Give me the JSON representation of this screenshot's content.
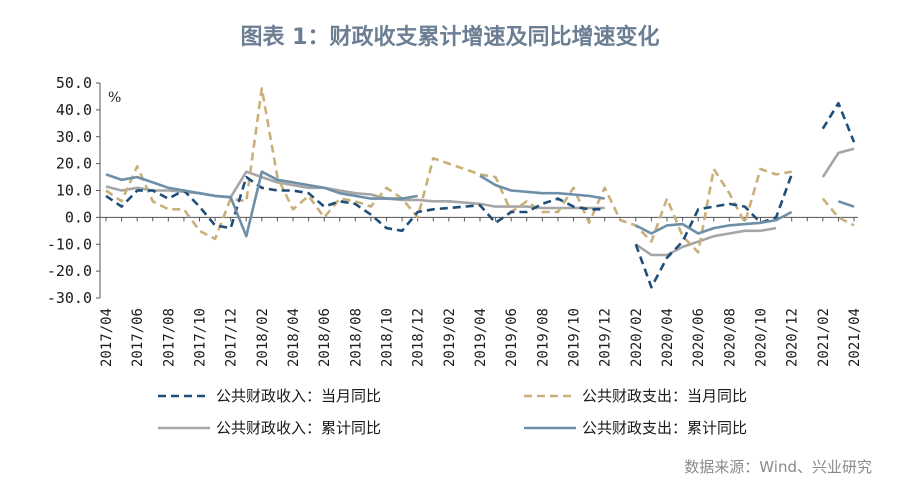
{
  "chart_data": {
    "type": "line",
    "title": "图表 1：财政收支累计增速及同比增速变化",
    "ylabel": "%",
    "ylim": [
      -30,
      50
    ],
    "yticks": [
      50,
      40,
      30,
      20,
      10,
      0,
      -10,
      -20,
      -30
    ],
    "ytick_labels": [
      "50.0",
      "40.0",
      "30.0",
      "20.0",
      "10.0",
      "0.0",
      "-10.0",
      "-20.0",
      "-30.0"
    ],
    "x": [
      "2017/04",
      "2017/05",
      "2017/06",
      "2017/07",
      "2017/08",
      "2017/09",
      "2017/10",
      "2017/11",
      "2017/12",
      "2018/01",
      "2018/02",
      "2018/03",
      "2018/04",
      "2018/05",
      "2018/06",
      "2018/07",
      "2018/08",
      "2018/09",
      "2018/10",
      "2018/11",
      "2018/12",
      "2019/01",
      "2019/02",
      "2019/03",
      "2019/04",
      "2019/05",
      "2019/06",
      "2019/07",
      "2019/08",
      "2019/09",
      "2019/10",
      "2019/11",
      "2019/12",
      "2020/01",
      "2020/02",
      "2020/03",
      "2020/04",
      "2020/05",
      "2020/06",
      "2020/07",
      "2020/08",
      "2020/09",
      "2020/10",
      "2020/11",
      "2020/12",
      "2021/01",
      "2021/02",
      "2021/03",
      "2021/04"
    ],
    "xtick_labels": [
      "2017/04",
      "2017/06",
      "2017/08",
      "2017/10",
      "2017/12",
      "2018/02",
      "2018/04",
      "2018/06",
      "2018/08",
      "2018/10",
      "2018/12",
      "2019/02",
      "2019/04",
      "2019/06",
      "2019/08",
      "2019/10",
      "2019/12",
      "2020/02",
      "2020/04",
      "2020/06",
      "2020/08",
      "2020/10",
      "2020/12",
      "2021/02",
      "2021/04"
    ],
    "series": [
      {
        "name": "公共财政收入：当月同比",
        "color": "#1f4e79",
        "dash": "dashed",
        "values": [
          8,
          4,
          10,
          10,
          7,
          10,
          4,
          -3,
          -4,
          15,
          11,
          10,
          10,
          9,
          4,
          6,
          5,
          1,
          -4,
          -5,
          2,
          3,
          3.5,
          4,
          4.5,
          -2,
          2,
          2,
          5,
          7,
          4,
          3,
          3,
          null,
          -10,
          -26,
          -15,
          -9,
          3,
          4,
          5,
          4,
          -2,
          0,
          16,
          null,
          33,
          42.5,
          28
        ]
      },
      {
        "name": "公共财政支出：当月同比",
        "color": "#c9b07a",
        "dash": "dashed",
        "values": [
          10,
          6,
          19,
          6,
          3,
          3,
          -5,
          -8,
          7,
          6,
          48,
          15,
          3,
          8,
          0,
          7,
          6,
          4,
          11,
          7,
          0,
          22,
          20,
          18,
          16,
          15,
          2,
          6,
          2,
          2,
          11,
          -2,
          11,
          -1,
          -3,
          -9,
          7,
          -7,
          -13,
          18,
          9,
          -2,
          18,
          16,
          17,
          null,
          7,
          0,
          -3
        ]
      },
      {
        "name": "公共财政收入：累计同比",
        "color": "#a6a6a6",
        "dash": "solid",
        "values": [
          11.5,
          10,
          11,
          10,
          10,
          9.5,
          9,
          8,
          7.5,
          17,
          15,
          13,
          12,
          11,
          11,
          10,
          9,
          8.5,
          7,
          6.5,
          6.5,
          6,
          6,
          5.5,
          5,
          4,
          4,
          4,
          3.5,
          3.5,
          3.5,
          3.5,
          3.5,
          null,
          -10,
          -14,
          -14,
          -11,
          -9,
          -7,
          -6,
          -5,
          -5,
          -4,
          null,
          null,
          15,
          24,
          25.5
        ]
      },
      {
        "name": "公共财政支出：累计同比",
        "color": "#6d8fa8",
        "dash": "solid",
        "values": [
          16,
          14,
          15,
          13,
          11,
          10,
          9,
          8,
          7.5,
          -7,
          17,
          14,
          13,
          12,
          11,
          9,
          8,
          7,
          7,
          7,
          8,
          null,
          null,
          null,
          15.5,
          12,
          10,
          9.5,
          9,
          9,
          8.5,
          8,
          7,
          null,
          -3,
          -6,
          -3,
          -2.5,
          -6,
          -4,
          -3,
          -2.5,
          -2,
          -1,
          2,
          null,
          null,
          6,
          4
        ]
      }
    ],
    "legend": "bottom"
  },
  "legend_items": [
    {
      "label": "公共财政收入：当月同比",
      "color": "#1f4e79",
      "dash": "dashed"
    },
    {
      "label": "公共财政支出：当月同比",
      "color": "#c9b07a",
      "dash": "dashed"
    },
    {
      "label": "公共财政收入：累计同比",
      "color": "#a6a6a6",
      "dash": "solid"
    },
    {
      "label": "公共财政支出：累计同比",
      "color": "#6d8fa8",
      "dash": "solid"
    }
  ],
  "source": "数据来源：Wind、兴业研究"
}
